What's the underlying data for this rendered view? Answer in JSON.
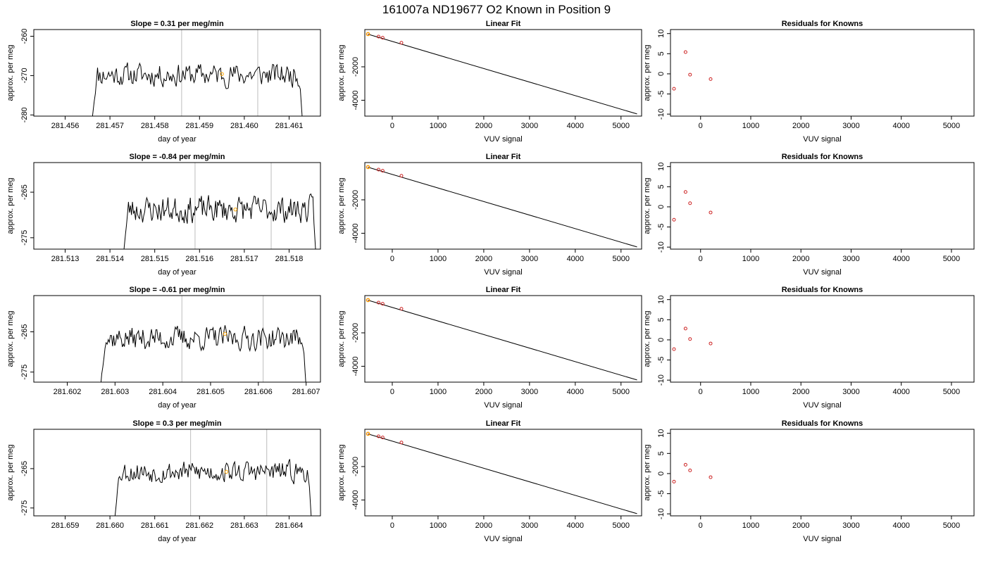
{
  "title": "161007a     ND19677   O2 Known in Position  9",
  "chart_data": [
    {
      "type": "line",
      "row": 0,
      "col": 0,
      "title": "Slope =  0.31  per meg/min",
      "xlabel": "day of year",
      "ylabel": "approx. per meg",
      "xlim": [
        281.4553,
        281.4617
      ],
      "ylim": [
        -280.3,
        -258.3
      ],
      "xticks": [
        "281.456",
        "281.457",
        "281.458",
        "281.459",
        "281.460",
        "281.461"
      ],
      "yticks": [
        "-260",
        "-270",
        "-280"
      ],
      "vlines": [
        281.4586,
        281.4603
      ],
      "marker": {
        "x": 281.4595,
        "y": -269.6
      },
      "series": [
        {
          "start": 281.4566,
          "end": 281.4613,
          "level": -269.8,
          "noise": 2.6,
          "ramp_to": -281.0,
          "drop_to": -282.0,
          "seed": 11
        }
      ]
    },
    {
      "type": "scatter-fit",
      "row": 0,
      "col": 1,
      "title": "Linear Fit",
      "xlabel": "VUV signal",
      "ylabel": "approx. per meg",
      "xlim": [
        -600,
        5450
      ],
      "ylim": [
        -4950,
        230
      ],
      "xticks": [
        0,
        1000,
        2000,
        3000,
        4000,
        5000
      ],
      "yticks": [
        -2000,
        -4000
      ],
      "fit": {
        "x1": -530,
        "y1": -50,
        "x2": 5350,
        "y2": -4820
      },
      "points": [
        {
          "x": -530,
          "y": -40
        },
        {
          "x": -300,
          "y": -190
        },
        {
          "x": -210,
          "y": -260
        },
        {
          "x": 200,
          "y": -560
        }
      ],
      "highlight": {
        "x": -530,
        "y": -40
      }
    },
    {
      "type": "scatter",
      "row": 0,
      "col": 2,
      "title": "Residuals for Knowns",
      "xlabel": "VUV signal",
      "ylabel": "approx. per meg",
      "xlim": [
        -600,
        5450
      ],
      "ylim": [
        -10.5,
        11
      ],
      "xticks": [
        0,
        1000,
        2000,
        3000,
        4000,
        5000
      ],
      "yticks": [
        10,
        5,
        0,
        -5,
        -10
      ],
      "points": [
        {
          "x": -530,
          "y": -3.7
        },
        {
          "x": -300,
          "y": 5.4
        },
        {
          "x": -210,
          "y": -0.2
        },
        {
          "x": 200,
          "y": -1.3
        }
      ]
    },
    {
      "type": "line",
      "row": 1,
      "col": 0,
      "title": "Slope =  -0.84  per meg/min",
      "xlabel": "day of year",
      "ylabel": "approx. per meg",
      "xlim": [
        281.5123,
        281.5187
      ],
      "ylim": [
        -277.5,
        -258.5
      ],
      "xticks": [
        "281.513",
        "281.514",
        "281.515",
        "281.516",
        "281.517",
        "281.518"
      ],
      "yticks": [
        "-265",
        "-275"
      ],
      "vlines": [
        281.5159,
        281.5176
      ],
      "marker": {
        "x": 281.5168,
        "y": -268.8
      },
      "series": [
        {
          "start": 281.5143,
          "end": 281.5186,
          "level": -268.8,
          "noise": 2.6,
          "ramp_to": -278.5,
          "drop_to": -279.0,
          "seed": 23
        }
      ]
    },
    {
      "type": "scatter-fit",
      "row": 1,
      "col": 1,
      "title": "Linear Fit",
      "xlabel": "VUV signal",
      "ylabel": "approx. per meg",
      "xlim": [
        -600,
        5450
      ],
      "ylim": [
        -4950,
        230
      ],
      "xticks": [
        0,
        1000,
        2000,
        3000,
        4000,
        5000
      ],
      "yticks": [
        -2000,
        -4000
      ],
      "fit": {
        "x1": -530,
        "y1": -50,
        "x2": 5350,
        "y2": -4820
      },
      "points": [
        {
          "x": -530,
          "y": -40
        },
        {
          "x": -300,
          "y": -190
        },
        {
          "x": -210,
          "y": -260
        },
        {
          "x": 200,
          "y": -560
        }
      ],
      "highlight": {
        "x": -530,
        "y": -40
      }
    },
    {
      "type": "scatter",
      "row": 1,
      "col": 2,
      "title": "Residuals for Knowns",
      "xlabel": "VUV signal",
      "ylabel": "approx. per meg",
      "xlim": [
        -600,
        5450
      ],
      "ylim": [
        -10.5,
        11
      ],
      "xticks": [
        0,
        1000,
        2000,
        3000,
        4000,
        5000
      ],
      "yticks": [
        10,
        5,
        0,
        -5,
        -10
      ],
      "points": [
        {
          "x": -530,
          "y": -3.2
        },
        {
          "x": -300,
          "y": 3.7
        },
        {
          "x": -210,
          "y": 0.9
        },
        {
          "x": 200,
          "y": -1.4
        }
      ]
    },
    {
      "type": "line",
      "row": 2,
      "col": 0,
      "title": "Slope =  -0.61  per meg/min",
      "xlabel": "day of year",
      "ylabel": "approx. per meg",
      "xlim": [
        281.6013,
        281.6073
      ],
      "ylim": [
        -277.5,
        -256.0
      ],
      "xticks": [
        "281.602",
        "281.603",
        "281.604",
        "281.605",
        "281.606",
        "281.607"
      ],
      "yticks": [
        "-265",
        "-275"
      ],
      "vlines": [
        281.6044,
        281.6061
      ],
      "marker": {
        "x": 281.6053,
        "y": -265.5
      },
      "series": [
        {
          "start": 281.6027,
          "end": 281.607,
          "level": -266.6,
          "noise": 2.6,
          "ramp_to": -278.0,
          "drop_to": -279.0,
          "seed": 37
        }
      ]
    },
    {
      "type": "scatter-fit",
      "row": 2,
      "col": 1,
      "title": "Linear Fit",
      "xlabel": "VUV signal",
      "ylabel": "approx. per meg",
      "xlim": [
        -600,
        5450
      ],
      "ylim": [
        -4950,
        230
      ],
      "xticks": [
        0,
        1000,
        2000,
        3000,
        4000,
        5000
      ],
      "yticks": [
        -2000,
        -4000
      ],
      "fit": {
        "x1": -530,
        "y1": -50,
        "x2": 5350,
        "y2": -4820
      },
      "points": [
        {
          "x": -530,
          "y": -40
        },
        {
          "x": -300,
          "y": -190
        },
        {
          "x": -210,
          "y": -260
        },
        {
          "x": 200,
          "y": -560
        }
      ],
      "highlight": {
        "x": -530,
        "y": -40
      }
    },
    {
      "type": "scatter",
      "row": 2,
      "col": 2,
      "title": "Residuals for Knowns",
      "xlabel": "VUV signal",
      "ylabel": "approx. per meg",
      "xlim": [
        -600,
        5450
      ],
      "ylim": [
        -10.5,
        11
      ],
      "xticks": [
        0,
        1000,
        2000,
        3000,
        4000,
        5000
      ],
      "yticks": [
        10,
        5,
        0,
        -5,
        -10
      ],
      "points": [
        {
          "x": -530,
          "y": -2.3
        },
        {
          "x": -300,
          "y": 2.8
        },
        {
          "x": -210,
          "y": 0.2
        },
        {
          "x": 200,
          "y": -0.9
        }
      ]
    },
    {
      "type": "line",
      "row": 3,
      "col": 0,
      "title": "Slope =  0.3  per meg/min",
      "xlabel": "day of year",
      "ylabel": "approx. per meg",
      "xlim": [
        281.6583,
        281.6647
      ],
      "ylim": [
        -277.0,
        -255.0
      ],
      "xticks": [
        "281.659",
        "281.660",
        "281.661",
        "281.662",
        "281.663",
        "281.664"
      ],
      "yticks": [
        "-265",
        "-275"
      ],
      "vlines": [
        281.6618,
        281.6635
      ],
      "marker": {
        "x": 281.6626,
        "y": -265.8
      },
      "series": [
        {
          "start": 281.6601,
          "end": 281.6645,
          "level": -265.8,
          "noise": 2.4,
          "ramp_to": -278.0,
          "drop_to": -278.5,
          "seed": 53
        }
      ]
    },
    {
      "type": "scatter-fit",
      "row": 3,
      "col": 1,
      "title": "Linear Fit",
      "xlabel": "VUV signal",
      "ylabel": "approx. per meg",
      "xlim": [
        -600,
        5450
      ],
      "ylim": [
        -4950,
        230
      ],
      "xticks": [
        0,
        1000,
        2000,
        3000,
        4000,
        5000
      ],
      "yticks": [
        -2000,
        -4000
      ],
      "fit": {
        "x1": -530,
        "y1": -50,
        "x2": 5350,
        "y2": -4820
      },
      "points": [
        {
          "x": -530,
          "y": -40
        },
        {
          "x": -300,
          "y": -190
        },
        {
          "x": -210,
          "y": -260
        },
        {
          "x": 200,
          "y": -560
        }
      ],
      "highlight": {
        "x": -530,
        "y": -40
      }
    },
    {
      "type": "scatter",
      "row": 3,
      "col": 2,
      "title": "Residuals for Knowns",
      "xlabel": "VUV signal",
      "ylabel": "approx. per meg",
      "xlim": [
        -600,
        5450
      ],
      "ylim": [
        -10.5,
        11
      ],
      "xticks": [
        0,
        1000,
        2000,
        3000,
        4000,
        5000
      ],
      "yticks": [
        10,
        5,
        0,
        -5,
        -10
      ],
      "points": [
        {
          "x": -530,
          "y": -2.0
        },
        {
          "x": -300,
          "y": 2.2
        },
        {
          "x": -210,
          "y": 0.8
        },
        {
          "x": 200,
          "y": -0.9
        }
      ]
    }
  ]
}
